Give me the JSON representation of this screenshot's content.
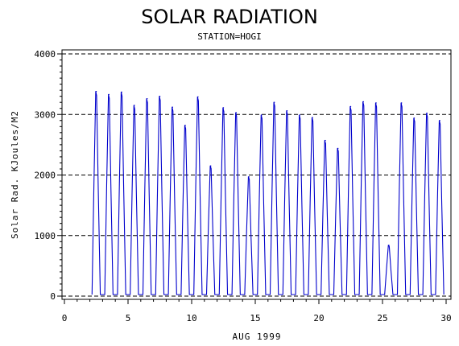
{
  "chart_data": {
    "type": "line",
    "title": "SOLAR RADIATION",
    "subtitle": "STATION=HOGI",
    "xlabel": "AUG 1999",
    "ylabel": "Solar Rad. KJoules/M2",
    "xlim": [
      0,
      30
    ],
    "ylim": [
      0,
      4000
    ],
    "x_ticks": [
      0,
      5,
      10,
      15,
      20,
      25,
      30
    ],
    "y_ticks": [
      0,
      1000,
      2000,
      3000,
      4000
    ],
    "grid": "horizontal dashed at y ticks",
    "series": [
      {
        "color": "#0000cc",
        "daily_peaks": [
          {
            "day": 2.5,
            "peak": 3380
          },
          {
            "day": 3.5,
            "peak": 3330
          },
          {
            "day": 4.5,
            "peak": 3370
          },
          {
            "day": 5.5,
            "peak": 3150
          },
          {
            "day": 6.5,
            "peak": 3260
          },
          {
            "day": 7.5,
            "peak": 3300
          },
          {
            "day": 8.5,
            "peak": 3120
          },
          {
            "day": 9.5,
            "peak": 2820
          },
          {
            "day": 10.5,
            "peak": 3290
          },
          {
            "day": 11.5,
            "peak": 2150
          },
          {
            "day": 12.5,
            "peak": 3110
          },
          {
            "day": 13.5,
            "peak": 3030
          },
          {
            "day": 14.5,
            "peak": 1970
          },
          {
            "day": 15.5,
            "peak": 2990
          },
          {
            "day": 16.5,
            "peak": 3200
          },
          {
            "day": 17.5,
            "peak": 3060
          },
          {
            "day": 18.5,
            "peak": 2990
          },
          {
            "day": 19.5,
            "peak": 2950
          },
          {
            "day": 20.5,
            "peak": 2570
          },
          {
            "day": 21.5,
            "peak": 2440
          },
          {
            "day": 22.5,
            "peak": 3130
          },
          {
            "day": 23.5,
            "peak": 3210
          },
          {
            "day": 24.5,
            "peak": 3190
          },
          {
            "day": 25.5,
            "peak": 840
          },
          {
            "day": 26.5,
            "peak": 3190
          },
          {
            "day": 27.5,
            "peak": 2940
          },
          {
            "day": 28.5,
            "peak": 3020
          },
          {
            "day": 29.5,
            "peak": 2900
          }
        ]
      }
    ]
  }
}
